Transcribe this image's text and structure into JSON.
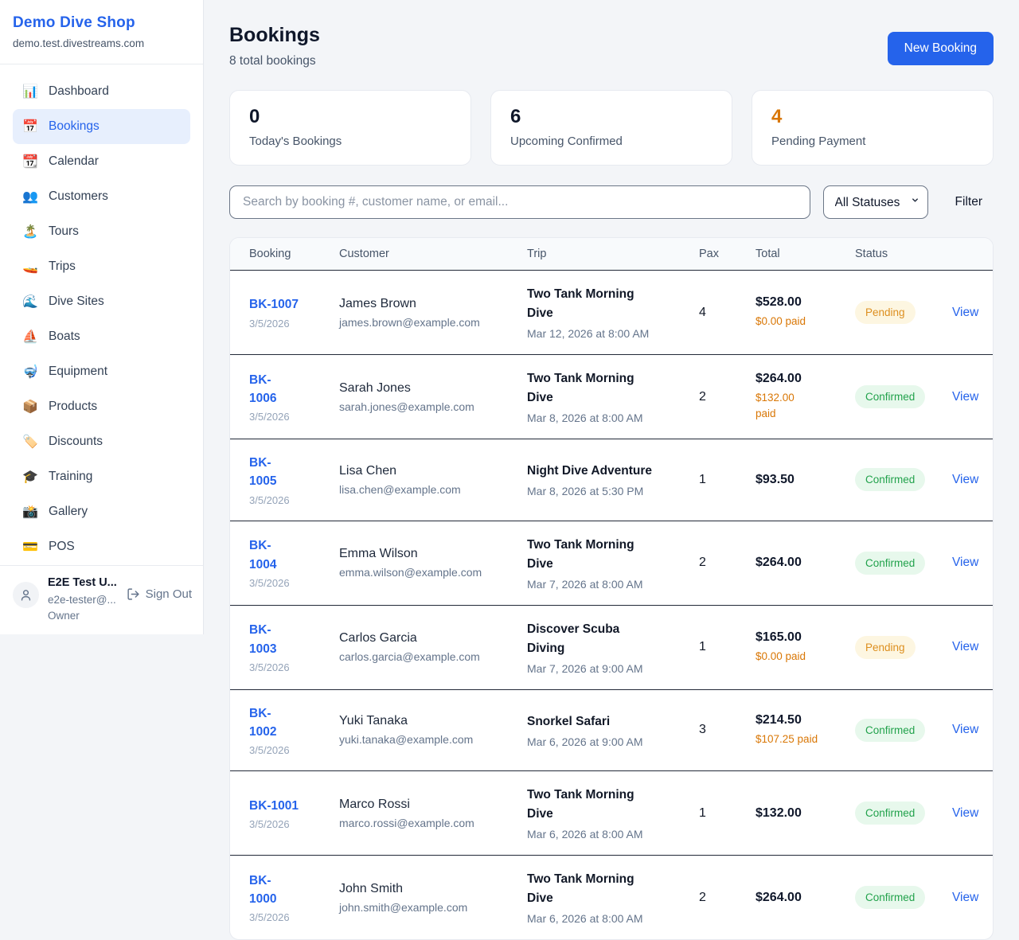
{
  "sidebar": {
    "brand": {
      "name": "Demo Dive Shop",
      "domain": "demo.test.divestreams.com"
    },
    "items": [
      {
        "icon": "📊",
        "icon_name": "dashboard-icon",
        "label": "Dashboard",
        "active": false
      },
      {
        "icon": "📅",
        "icon_name": "bookings-icon",
        "label": "Bookings",
        "active": true
      },
      {
        "icon": "📆",
        "icon_name": "calendar-icon",
        "label": "Calendar",
        "active": false
      },
      {
        "icon": "👥",
        "icon_name": "customers-icon",
        "label": "Customers",
        "active": false
      },
      {
        "icon": "🏝️",
        "icon_name": "tours-icon",
        "label": "Tours",
        "active": false
      },
      {
        "icon": "🚤",
        "icon_name": "trips-icon",
        "label": "Trips",
        "active": false
      },
      {
        "icon": "🌊",
        "icon_name": "dive-sites-icon",
        "label": "Dive Sites",
        "active": false
      },
      {
        "icon": "⛵",
        "icon_name": "boats-icon",
        "label": "Boats",
        "active": false
      },
      {
        "icon": "🤿",
        "icon_name": "equipment-icon",
        "label": "Equipment",
        "active": false
      },
      {
        "icon": "📦",
        "icon_name": "products-icon",
        "label": "Products",
        "active": false
      },
      {
        "icon": "🏷️",
        "icon_name": "discounts-icon",
        "label": "Discounts",
        "active": false
      },
      {
        "icon": "🎓",
        "icon_name": "training-icon",
        "label": "Training",
        "active": false
      },
      {
        "icon": "📸",
        "icon_name": "gallery-icon",
        "label": "Gallery",
        "active": false
      },
      {
        "icon": "💳",
        "icon_name": "pos-icon",
        "label": "POS",
        "active": false
      }
    ],
    "user": {
      "name": "E2E Test U...",
      "email": "e2e-tester@...",
      "role": "Owner",
      "sign_out_label": "Sign Out"
    }
  },
  "header": {
    "title": "Bookings",
    "subtitle": "8 total bookings",
    "new_booking_label": "New Booking"
  },
  "stats": [
    {
      "value": "0",
      "label": "Today's Bookings",
      "highlight": false
    },
    {
      "value": "6",
      "label": "Upcoming Confirmed",
      "highlight": false
    },
    {
      "value": "4",
      "label": "Pending Payment",
      "highlight": true
    }
  ],
  "filters": {
    "search_placeholder": "Search by booking #, customer name, or email...",
    "status_selected": "All Statuses",
    "filter_label": "Filter"
  },
  "table": {
    "columns": {
      "booking": "Booking",
      "customer": "Customer",
      "trip": "Trip",
      "pax": "Pax",
      "total": "Total",
      "status": "Status"
    },
    "view_label": "View",
    "rows": [
      {
        "id": "BK-1007",
        "id_wrap": false,
        "date": "3/5/2026",
        "customer": "James Brown",
        "email": "james.brown@example.com",
        "trip": "Two Tank Morning Dive",
        "trip_time": "Mar 12, 2026 at 8:00 AM",
        "pax": "4",
        "total": "$528.00",
        "paid": "$0.00 paid",
        "paid_wrap": false,
        "status": "Pending"
      },
      {
        "id": "BK-1006",
        "id_wrap": true,
        "date": "3/5/2026",
        "customer": "Sarah Jones",
        "email": "sarah.jones@example.com",
        "trip": "Two Tank Morning Dive",
        "trip_time": "Mar 8, 2026 at 8:00 AM",
        "pax": "2",
        "total": "$264.00",
        "paid": "$132.00 paid",
        "paid_wrap": true,
        "status": "Confirmed"
      },
      {
        "id": "BK-1005",
        "id_wrap": true,
        "date": "3/5/2026",
        "customer": "Lisa Chen",
        "email": "lisa.chen@example.com",
        "trip": "Night Dive Adventure",
        "trip_time": "Mar 8, 2026 at 5:30 PM",
        "pax": "1",
        "total": "$93.50",
        "paid": null,
        "paid_wrap": false,
        "status": "Confirmed"
      },
      {
        "id": "BK-1004",
        "id_wrap": true,
        "date": "3/5/2026",
        "customer": "Emma Wilson",
        "email": "emma.wilson@example.com",
        "trip": "Two Tank Morning Dive",
        "trip_time": "Mar 7, 2026 at 8:00 AM",
        "pax": "2",
        "total": "$264.00",
        "paid": null,
        "paid_wrap": false,
        "status": "Confirmed"
      },
      {
        "id": "BK-1003",
        "id_wrap": true,
        "date": "3/5/2026",
        "customer": "Carlos Garcia",
        "email": "carlos.garcia@example.com",
        "trip": "Discover Scuba Diving",
        "trip_time": "Mar 7, 2026 at 9:00 AM",
        "pax": "1",
        "total": "$165.00",
        "paid": "$0.00 paid",
        "paid_wrap": false,
        "status": "Pending"
      },
      {
        "id": "BK-1002",
        "id_wrap": true,
        "date": "3/5/2026",
        "customer": "Yuki Tanaka",
        "email": "yuki.tanaka@example.com",
        "trip": "Snorkel Safari",
        "trip_time": "Mar 6, 2026 at 9:00 AM",
        "pax": "3",
        "total": "$214.50",
        "paid": "$107.25 paid",
        "paid_wrap": false,
        "status": "Confirmed"
      },
      {
        "id": "BK-1001",
        "id_wrap": false,
        "date": "3/5/2026",
        "customer": "Marco Rossi",
        "email": "marco.rossi@example.com",
        "trip": "Two Tank Morning Dive",
        "trip_time": "Mar 6, 2026 at 8:00 AM",
        "pax": "1",
        "total": "$132.00",
        "paid": null,
        "paid_wrap": false,
        "status": "Confirmed"
      },
      {
        "id": "BK-1000",
        "id_wrap": true,
        "date": "3/5/2026",
        "customer": "John Smith",
        "email": "john.smith@example.com",
        "trip": "Two Tank Morning Dive",
        "trip_time": "Mar 6, 2026 at 8:00 AM",
        "pax": "2",
        "total": "$264.00",
        "paid": null,
        "paid_wrap": false,
        "status": "Confirmed"
      }
    ]
  },
  "colors": {
    "accent": "#2563eb",
    "pending_text": "#dd8f1f",
    "pending_bg": "#fdf6e1",
    "confirmed_text": "#22a24c",
    "confirmed_bg": "#e7f8ec",
    "paid_orange": "#d97706"
  }
}
